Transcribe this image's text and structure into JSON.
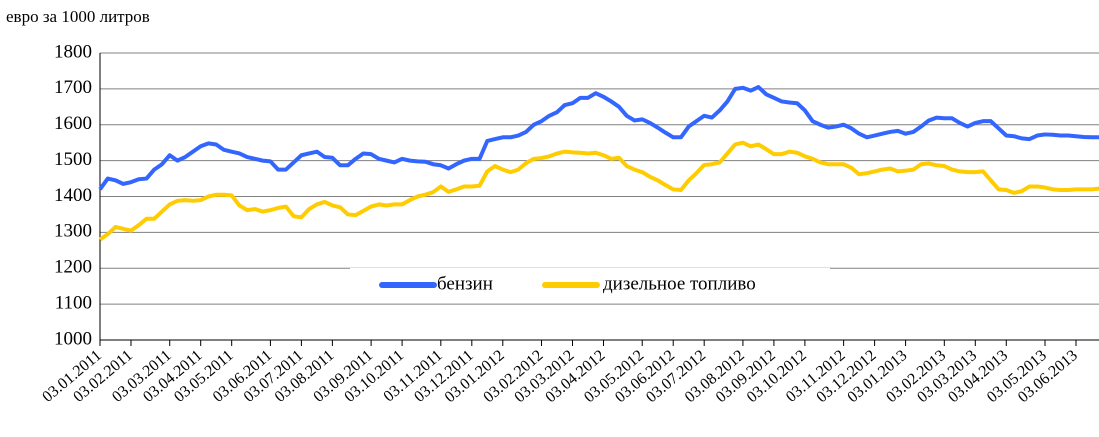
{
  "chart_data": {
    "type": "line",
    "y_axis_label": "евро за 1000 литров",
    "ylim": [
      1000,
      1800
    ],
    "yticks": [
      1000,
      1100,
      1200,
      1300,
      1400,
      1500,
      1600,
      1700,
      1800
    ],
    "grid": true,
    "legend": "center",
    "categories": [
      "03.01.2011",
      null,
      null,
      null,
      "03.02.2011",
      null,
      null,
      null,
      null,
      "03.03.2011",
      null,
      null,
      null,
      "03.04.2011",
      null,
      null,
      null,
      "03.05.2011",
      null,
      null,
      null,
      null,
      "03.06.2011",
      null,
      null,
      null,
      "03.07.2011",
      null,
      null,
      null,
      "03.08.2011",
      null,
      null,
      null,
      null,
      "03.09.2011",
      null,
      null,
      null,
      "03.10.2011",
      null,
      null,
      null,
      null,
      "03.11.2011",
      null,
      null,
      null,
      "03.12.2011",
      null,
      null,
      null,
      "03.01.2012",
      null,
      null,
      null,
      null,
      "03.02.2012",
      null,
      null,
      null,
      "03.03.2012",
      null,
      null,
      null,
      "03.04.2012",
      null,
      null,
      null,
      null,
      "03.05.2012",
      null,
      null,
      null,
      "03.06.2012",
      null,
      null,
      null,
      "03.07.2012",
      null,
      null,
      null,
      null,
      "03.08.2012",
      null,
      null,
      null,
      "03.09.2012",
      null,
      null,
      null,
      "03.10.2012",
      null,
      null,
      null,
      null,
      "03.11.2012",
      null,
      null,
      null,
      "03.12.2012",
      null,
      null,
      null,
      "03.01.2013",
      null,
      null,
      null,
      null,
      "03.02.2013",
      null,
      null,
      null,
      "03.03.2013",
      null,
      null,
      null,
      "03.04.2013",
      null,
      null,
      null,
      null,
      "03.05.2013",
      null,
      null,
      null,
      "03.06.2013",
      null,
      null,
      null
    ],
    "series": [
      {
        "name": "бензин",
        "color": "#3366ff",
        "values": [
          1420,
          1450,
          1445,
          1435,
          1440,
          1448,
          1450,
          1475,
          1490,
          1515,
          1500,
          1510,
          1525,
          1540,
          1548,
          1545,
          1530,
          1525,
          1520,
          1510,
          1505,
          1500,
          1498,
          1475,
          1475,
          1495,
          1515,
          1520,
          1525,
          1510,
          1508,
          1487,
          1487,
          1505,
          1520,
          1518,
          1505,
          1500,
          1495,
          1505,
          1500,
          1498,
          1497,
          1490,
          1487,
          1478,
          1490,
          1500,
          1505,
          1505,
          1555,
          1560,
          1565,
          1565,
          1570,
          1580,
          1600,
          1610,
          1625,
          1635,
          1655,
          1660,
          1675,
          1675,
          1688,
          1678,
          1665,
          1650,
          1625,
          1612,
          1615,
          1605,
          1592,
          1578,
          1565,
          1565,
          1595,
          1610,
          1625,
          1620,
          1640,
          1665,
          1700,
          1703,
          1695,
          1705,
          1685,
          1675,
          1665,
          1662,
          1660,
          1640,
          1610,
          1600,
          1592,
          1595,
          1600,
          1590,
          1575,
          1565,
          1570,
          1575,
          1580,
          1583,
          1575,
          1580,
          1595,
          1612,
          1620,
          1618,
          1618,
          1605,
          1595,
          1605,
          1610,
          1610,
          1590,
          1570,
          1568,
          1562,
          1560,
          1570,
          1573,
          1572,
          1570,
          1570,
          1568,
          1566,
          1565,
          1565
        ]
      },
      {
        "name": "дизельное топливо",
        "color": "#ffcc00",
        "values": [
          1280,
          1295,
          1315,
          1310,
          1305,
          1320,
          1338,
          1338,
          1358,
          1378,
          1388,
          1390,
          1388,
          1390,
          1400,
          1405,
          1405,
          1403,
          1375,
          1362,
          1365,
          1358,
          1362,
          1368,
          1372,
          1345,
          1342,
          1365,
          1378,
          1385,
          1375,
          1370,
          1350,
          1348,
          1360,
          1372,
          1378,
          1375,
          1378,
          1378,
          1390,
          1400,
          1405,
          1412,
          1428,
          1413,
          1420,
          1428,
          1428,
          1430,
          1470,
          1485,
          1475,
          1468,
          1475,
          1493,
          1505,
          1507,
          1512,
          1520,
          1525,
          1523,
          1522,
          1520,
          1522,
          1515,
          1505,
          1508,
          1485,
          1475,
          1468,
          1455,
          1445,
          1432,
          1420,
          1418,
          1445,
          1465,
          1488,
          1490,
          1495,
          1520,
          1545,
          1550,
          1540,
          1545,
          1532,
          1518,
          1518,
          1525,
          1522,
          1512,
          1505,
          1495,
          1490,
          1490,
          1490,
          1480,
          1462,
          1465,
          1470,
          1475,
          1478,
          1470,
          1472,
          1475,
          1490,
          1492,
          1487,
          1485,
          1475,
          1470,
          1468,
          1468,
          1470,
          1445,
          1420,
          1418,
          1410,
          1415,
          1428,
          1428,
          1425,
          1420,
          1418,
          1418,
          1420,
          1420,
          1420,
          1422
        ]
      }
    ]
  }
}
